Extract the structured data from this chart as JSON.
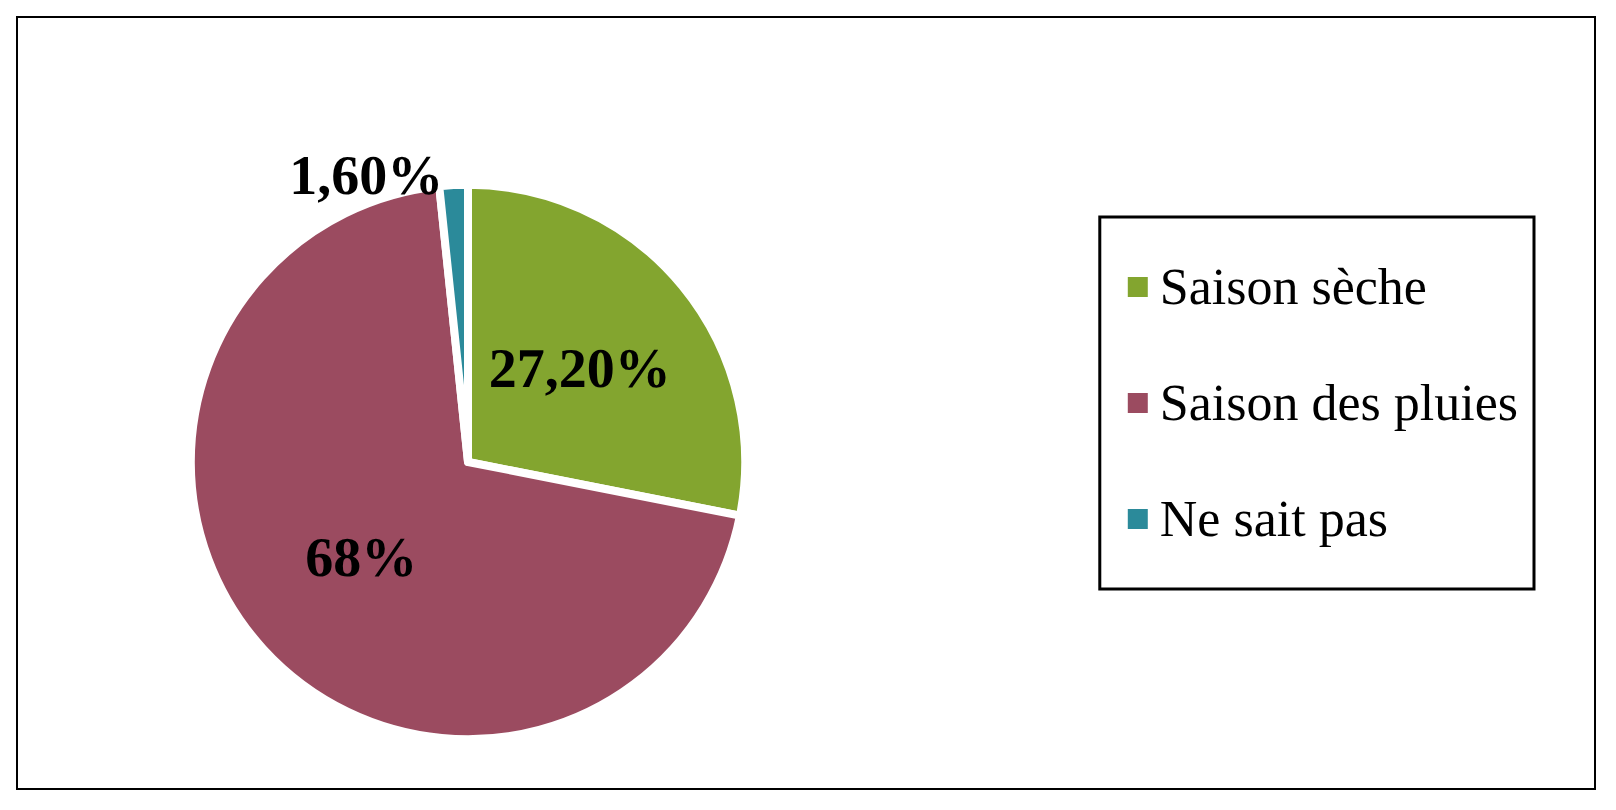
{
  "chart_data": {
    "type": "pie",
    "categories": [
      "Saison sèche",
      "Saison des pluies",
      "Ne sait pas"
    ],
    "values": [
      27.2,
      68,
      1.6
    ],
    "value_labels": [
      "27,20%",
      "68%",
      "1,60%"
    ],
    "colors": [
      "#83a52f",
      "#9b4b60",
      "#2b8a9a"
    ],
    "legend": "right"
  }
}
